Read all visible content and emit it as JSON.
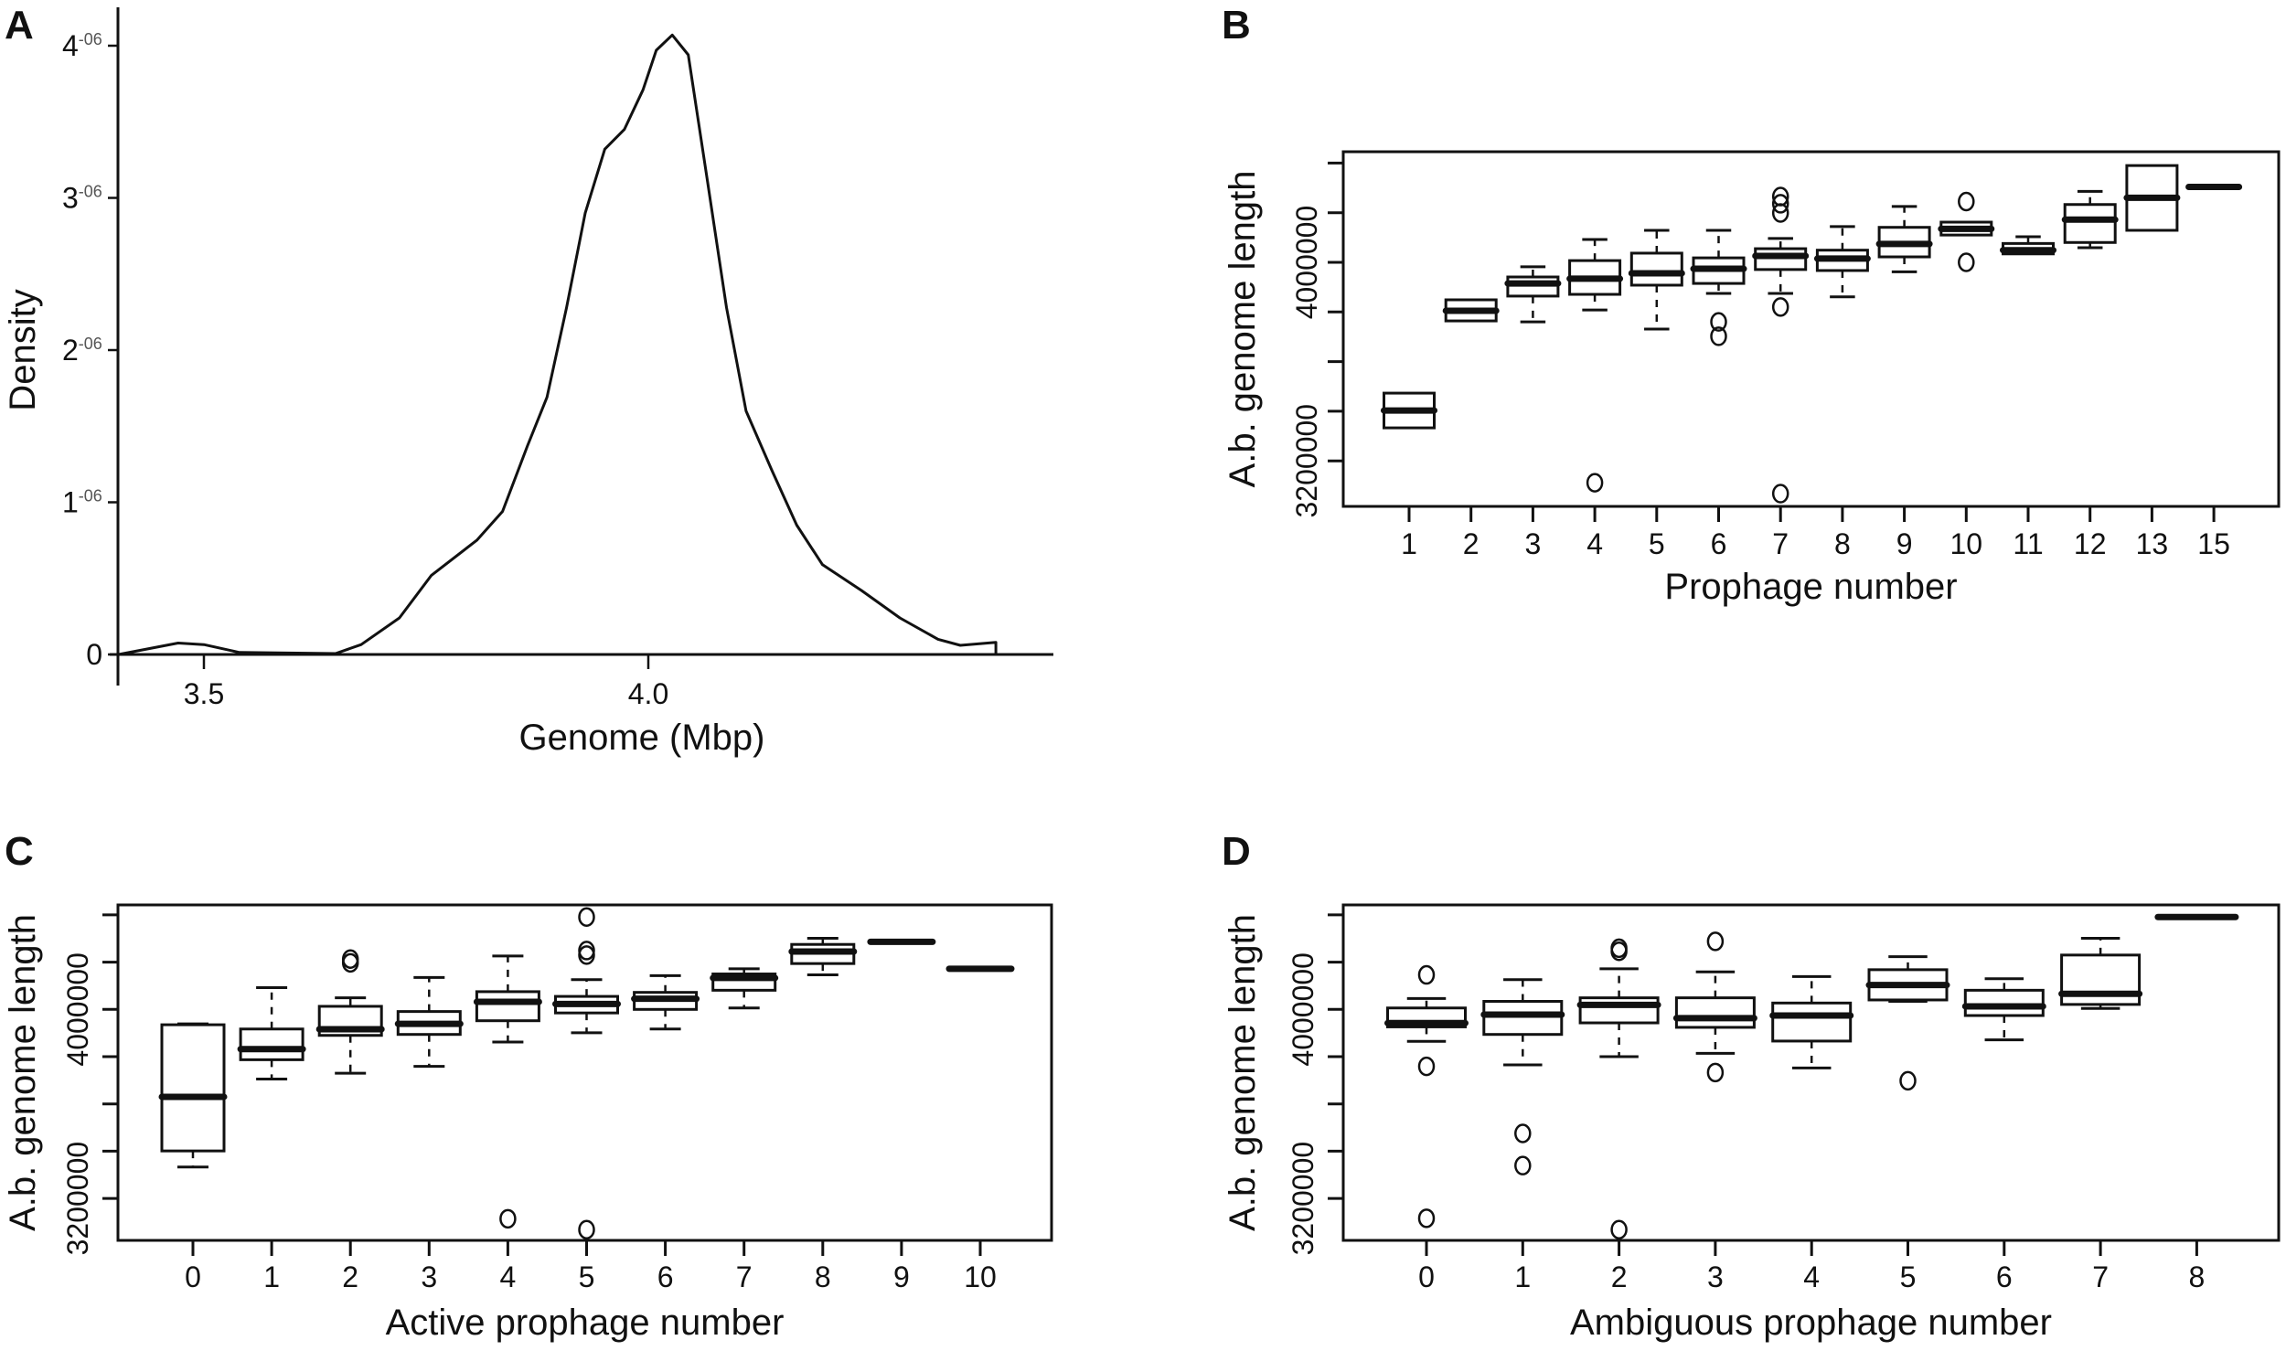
{
  "chart_data": [
    {
      "panel": "A",
      "type": "line",
      "xlabel": "Genome (Mbp)",
      "ylabel": "Density",
      "xticks": [
        "3.5",
        "4.0"
      ],
      "xtick_values": [
        3.5,
        4.0
      ],
      "yticks": [
        {
          "base": "0",
          "exp": "",
          "value": 0
        },
        {
          "base": "1",
          "exp": "-06",
          "value": 1e-06
        },
        {
          "base": "2",
          "exp": "-06",
          "value": 2e-06
        },
        {
          "base": "3",
          "exp": "-06",
          "value": 3e-06
        },
        {
          "base": "4",
          "exp": "-06",
          "value": 4e-06
        }
      ],
      "xlim": [
        3.404,
        4.47
      ],
      "ylim": [
        0,
        4.1e-06
      ],
      "x": [
        3.404,
        3.471,
        3.5,
        3.54,
        3.648,
        3.677,
        3.72,
        3.756,
        3.807,
        3.836,
        3.864,
        3.886,
        3.908,
        3.929,
        3.951,
        3.973,
        3.994,
        4.009,
        4.027,
        4.045,
        4.066,
        4.088,
        4.11,
        4.139,
        4.167,
        4.196,
        4.24,
        4.283,
        4.326,
        4.351,
        4.391,
        4.391
      ],
      "y": [
        0,
        7.5e-08,
        6.5e-08,
        1.3e-08,
        6e-09,
        6.5e-08,
        2.4e-07,
        5.2e-07,
        7.5e-07,
        9.4e-07,
        1.37e-06,
        1.69e-06,
        2.28e-06,
        2.9e-06,
        3.32e-06,
        3.45e-06,
        3.71e-06,
        3.97e-06,
        4.07e-06,
        3.94e-06,
        3.13e-06,
        2.28e-06,
        1.6e-06,
        1.21e-06,
        8.5e-07,
        5.9e-07,
        4.2e-07,
        2.4e-07,
        1e-07,
        6e-08,
        8e-08,
        0
      ]
    },
    {
      "panel": "B",
      "type": "box",
      "xlabel": "Prophage number",
      "ylabel": "A.b. genome length",
      "ytick_values": [
        3200000,
        3400000,
        3600000,
        3800000,
        4000000,
        4200000,
        4400000
      ],
      "ytick_labels": [
        {
          "value": 4000000,
          "label": "4000000"
        },
        {
          "value": 3200000,
          "label": "3200000"
        }
      ],
      "categories": [
        "1",
        "2",
        "3",
        "4",
        "5",
        "6",
        "7",
        "8",
        "9",
        "10",
        "11",
        "12",
        "13",
        "15"
      ],
      "boxes": [
        {
          "lo": 3333000,
          "q1": 3333000,
          "med": 3403000,
          "q3": 3473000,
          "hi": 3473000,
          "out": []
        },
        {
          "lo": 3764000,
          "q1": 3764000,
          "med": 3805000,
          "q3": 3849000,
          "hi": 3849000,
          "out": []
        },
        {
          "lo": 3760000,
          "q1": 3864000,
          "med": 3915000,
          "q3": 3941000,
          "hi": 3982000,
          "out": []
        },
        {
          "lo": 3808000,
          "q1": 3871000,
          "med": 3934000,
          "q3": 4007000,
          "hi": 4092000,
          "out": [
            3112000
          ]
        },
        {
          "lo": 3731000,
          "q1": 3908000,
          "med": 3956000,
          "q3": 4037000,
          "hi": 4129000,
          "out": []
        },
        {
          "lo": 3875000,
          "q1": 3915000,
          "med": 3974000,
          "q3": 4018000,
          "hi": 4129000,
          "out": [
            3760000,
            3702000
          ]
        },
        {
          "lo": 3875000,
          "q1": 3971000,
          "med": 4026000,
          "q3": 4055000,
          "hi": 4096000,
          "out": [
            4265000,
            4236000,
            4199000,
            3820000,
            3068000
          ]
        },
        {
          "lo": 3861000,
          "q1": 3967000,
          "med": 4015000,
          "q3": 4049000,
          "hi": 4144000,
          "out": []
        },
        {
          "lo": 3962000,
          "q1": 4022000,
          "med": 4074000,
          "q3": 4141000,
          "hi": 4225000,
          "out": []
        },
        {
          "lo": 4110000,
          "q1": 4110000,
          "med": 4135000,
          "q3": 4162000,
          "hi": 4162000,
          "out": [
            4245000,
            4000000
          ]
        },
        {
          "lo": 4034000,
          "q1": 4034000,
          "med": 4049000,
          "q3": 4076000,
          "hi": 4103000,
          "out": []
        },
        {
          "lo": 4059000,
          "q1": 4080000,
          "med": 4172000,
          "q3": 4233000,
          "hi": 4286000,
          "out": []
        },
        {
          "lo": 4129000,
          "q1": 4129000,
          "med": 4260000,
          "q3": 4390000,
          "hi": 4390000,
          "out": []
        },
        {
          "lo": 4304000,
          "q1": 4304000,
          "med": 4304000,
          "q3": 4304000,
          "hi": 4304000,
          "out": []
        }
      ]
    },
    {
      "panel": "C",
      "type": "box",
      "xlabel": "Active prophage number",
      "ylabel": "A.b. genome length",
      "ytick_values": [
        3200000,
        3400000,
        3600000,
        3800000,
        4000000,
        4200000,
        4400000
      ],
      "ytick_labels": [
        {
          "value": 4000000,
          "label": "4000000"
        },
        {
          "value": 3200000,
          "label": "3200000"
        }
      ],
      "categories": [
        "0",
        "1",
        "2",
        "3",
        "4",
        "5",
        "6",
        "7",
        "8",
        "9",
        "10"
      ],
      "boxes": [
        {
          "lo": 3333000,
          "q1": 3401000,
          "med": 3630000,
          "q3": 3935000,
          "hi": 3939000,
          "out": []
        },
        {
          "lo": 3705000,
          "q1": 3787000,
          "med": 3832000,
          "q3": 3917000,
          "hi": 4092000,
          "out": []
        },
        {
          "lo": 3730000,
          "q1": 3890000,
          "med": 3916000,
          "q3": 4013000,
          "hi": 4049000,
          "out": [
            4213000,
            4197000
          ]
        },
        {
          "lo": 3759000,
          "q1": 3894000,
          "med": 3939000,
          "q3": 3991000,
          "hi": 4135000,
          "out": []
        },
        {
          "lo": 3862000,
          "q1": 3952000,
          "med": 4032000,
          "q3": 4075000,
          "hi": 4226000,
          "out": [
            3114000
          ]
        },
        {
          "lo": 3901000,
          "q1": 3985000,
          "med": 4023000,
          "q3": 4055000,
          "hi": 4126000,
          "out": [
            4391000,
            4249000,
            4230000,
            3068000
          ]
        },
        {
          "lo": 3917000,
          "q1": 4000000,
          "med": 4045000,
          "q3": 4072000,
          "hi": 4143000,
          "out": []
        },
        {
          "lo": 4006000,
          "q1": 4081000,
          "med": 4133000,
          "q3": 4150000,
          "hi": 4172000,
          "out": []
        },
        {
          "lo": 4146000,
          "q1": 4194000,
          "med": 4245000,
          "q3": 4275000,
          "hi": 4301000,
          "out": []
        },
        {
          "lo": 4286000,
          "q1": 4286000,
          "med": 4286000,
          "q3": 4286000,
          "hi": 4286000,
          "out": []
        },
        {
          "lo": 4172000,
          "q1": 4172000,
          "med": 4172000,
          "q3": 4172000,
          "hi": 4172000,
          "out": []
        }
      ]
    },
    {
      "panel": "D",
      "type": "box",
      "xlabel": "Ambiguous prophage number",
      "ylabel": "A.b. genome length",
      "ytick_values": [
        3200000,
        3400000,
        3600000,
        3800000,
        4000000,
        4200000,
        4400000
      ],
      "ytick_labels": [
        {
          "value": 4000000,
          "label": "4000000"
        },
        {
          "value": 3200000,
          "label": "3200000"
        }
      ],
      "categories": [
        "0",
        "1",
        "2",
        "3",
        "4",
        "5",
        "6",
        "7",
        "8"
      ],
      "boxes": [
        {
          "lo": 3865000,
          "q1": 3926000,
          "med": 3942000,
          "q3": 4006000,
          "hi": 4046000,
          "out": [
            4146000,
            3759000,
            3116000
          ]
        },
        {
          "lo": 3765000,
          "q1": 3894000,
          "med": 3978000,
          "q3": 4034000,
          "hi": 4126000,
          "out": [
            3475000,
            3339000
          ]
        },
        {
          "lo": 3800000,
          "q1": 3943000,
          "med": 4019000,
          "q3": 4049000,
          "hi": 4172000,
          "out": [
            4259000,
            4246000,
            3068000
          ]
        },
        {
          "lo": 3814000,
          "q1": 3924000,
          "med": 3963000,
          "q3": 4049000,
          "hi": 4159000,
          "out": [
            4288000,
            3733000
          ]
        },
        {
          "lo": 3752000,
          "q1": 3866000,
          "med": 3974000,
          "q3": 4027000,
          "hi": 4139000,
          "out": []
        },
        {
          "lo": 4034000,
          "q1": 4040000,
          "med": 4103000,
          "q3": 4168000,
          "hi": 4223000,
          "out": [
            3698000
          ]
        },
        {
          "lo": 3871000,
          "q1": 3974000,
          "med": 4013000,
          "q3": 4081000,
          "hi": 4130000,
          "out": []
        },
        {
          "lo": 4004000,
          "q1": 4021000,
          "med": 4066000,
          "q3": 4230000,
          "hi": 4301000,
          "out": []
        },
        {
          "lo": 4391000,
          "q1": 4391000,
          "med": 4391000,
          "q3": 4391000,
          "hi": 4391000,
          "out": []
        }
      ]
    }
  ]
}
